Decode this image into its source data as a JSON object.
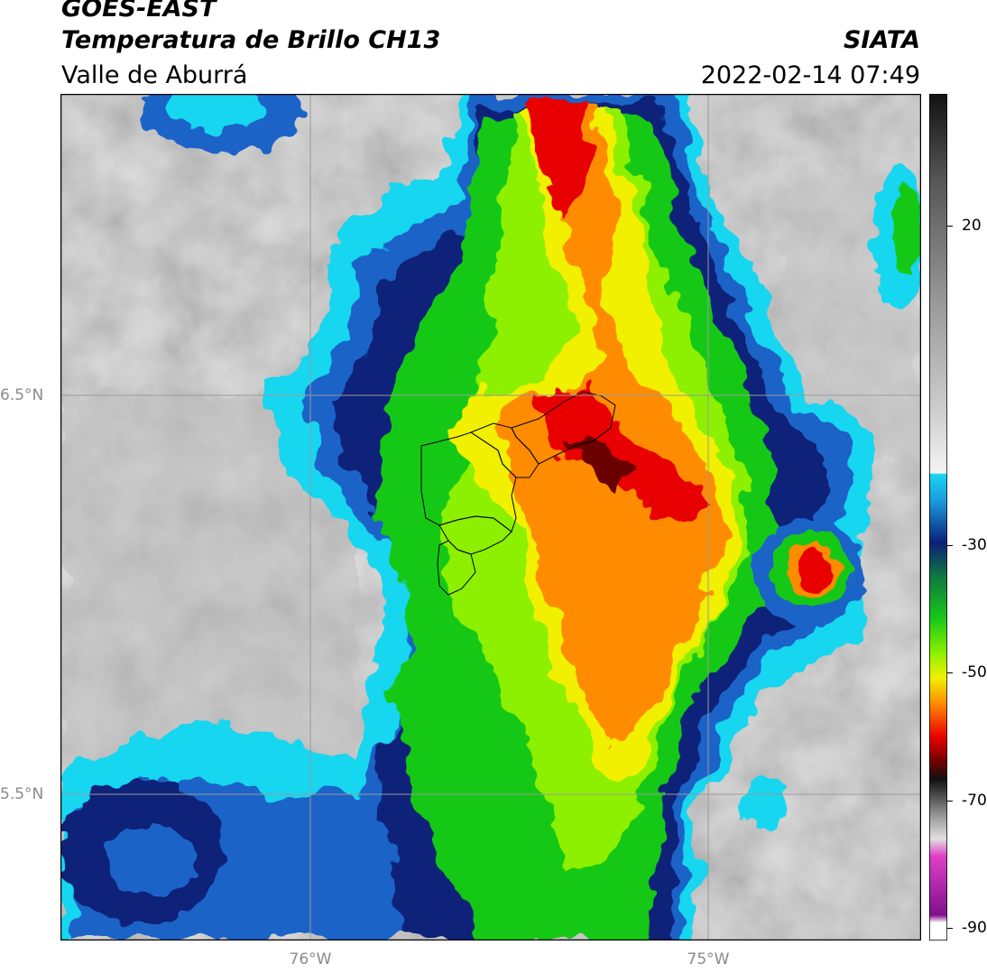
{
  "header": {
    "line1": "GOES-EAST",
    "line2": "Temperatura de Brillo CH13",
    "line3": "Valle de Aburrá",
    "brand": "SIATA",
    "timestamp": "2022-02-14 07:49"
  },
  "map": {
    "lat_labels": [
      "6.5°N",
      "5.5°N"
    ],
    "lon_labels": [
      "76°W",
      "75°W"
    ],
    "grid_color": "#9a9a9a"
  },
  "colorbar": {
    "ticks": [
      "20",
      "-30",
      "-50",
      "-70",
      "-90"
    ],
    "colors": {
      "warm_gray_top": "#111111",
      "cyan": "#19d6f0",
      "blue": "#1a64c8",
      "navy": "#0c2078",
      "green": "#18c818",
      "yellow": "#f0f000",
      "orange": "#ff8c00",
      "red": "#e80000",
      "magenta": "#e040c8",
      "purple": "#80108c"
    }
  }
}
